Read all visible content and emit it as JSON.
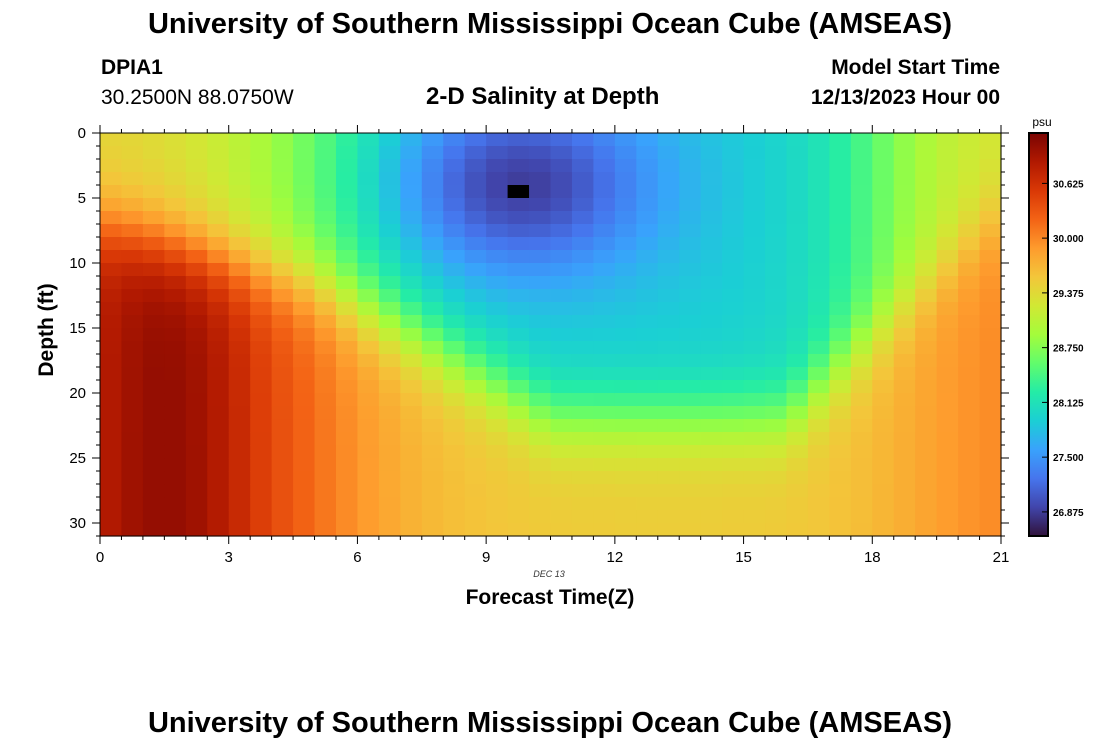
{
  "header": {
    "title": "University of Southern Mississippi Ocean Cube (AMSEAS)",
    "station_id": "DPIA1",
    "coords": "30.2500N  88.0750W",
    "subtitle": "2-D Salinity at Depth",
    "model_label": "Model Start Time",
    "model_date": "12/13/2023 Hour 00"
  },
  "footer": {
    "title": "University of Southern Mississippi Ocean Cube (AMSEAS)"
  },
  "chart_data": {
    "type": "heatmap",
    "title": "2-D Salinity at Depth",
    "xlabel": "Forecast Time(Z)",
    "ylabel": "Depth (ft)",
    "date_label": "DEC 13",
    "xlim": [
      0,
      21
    ],
    "ylim": [
      0,
      31
    ],
    "y_inverted": true,
    "x_ticks": [
      0,
      3,
      6,
      9,
      12,
      15,
      18,
      21
    ],
    "x_tick_labels": [
      "0",
      "3",
      "6",
      "9",
      "12",
      "15",
      "18",
      "21"
    ],
    "y_ticks": [
      0,
      5,
      10,
      15,
      20,
      25,
      30
    ],
    "y_tick_labels": [
      "0",
      "5",
      "10",
      "15",
      "20",
      "25",
      "30"
    ],
    "colorbar": {
      "units": "psu",
      "min": 26.6,
      "max": 31.2,
      "ticks": [
        26.875,
        27.5,
        28.125,
        28.75,
        29.375,
        30.0,
        30.625
      ],
      "tick_labels": [
        "26.875",
        "27.500",
        "28.125",
        "28.750",
        "29.375",
        "30.000",
        "30.625"
      ],
      "colors": [
        "#30123b",
        "#4145ab",
        "#4675ed",
        "#39a2fc",
        "#1bcfd4",
        "#24eca6",
        "#61fc6c",
        "#a4fc3b",
        "#d1e834",
        "#f3c63a",
        "#fe9b2d",
        "#f36315",
        "#d93806",
        "#b11901",
        "#7a0402"
      ]
    },
    "grid": {
      "nx": 42,
      "ny": 32,
      "x_step_hours": 0.5,
      "depth_step_ft": 1.0
    },
    "salinity_model": {
      "surface_fresh": {
        "center_hour": 9.6,
        "center_depth_ft": 4,
        "min_value": 26.8
      },
      "deep_salty": {
        "core_hour": 1.5,
        "core_depth_ft": 22,
        "max_value": 31.05
      },
      "bottom_layer_value": 29.5,
      "late_recovery_value": 30.05
    },
    "missing_cells": [
      {
        "hour": 9.5,
        "depth_ft": 4
      }
    ]
  }
}
